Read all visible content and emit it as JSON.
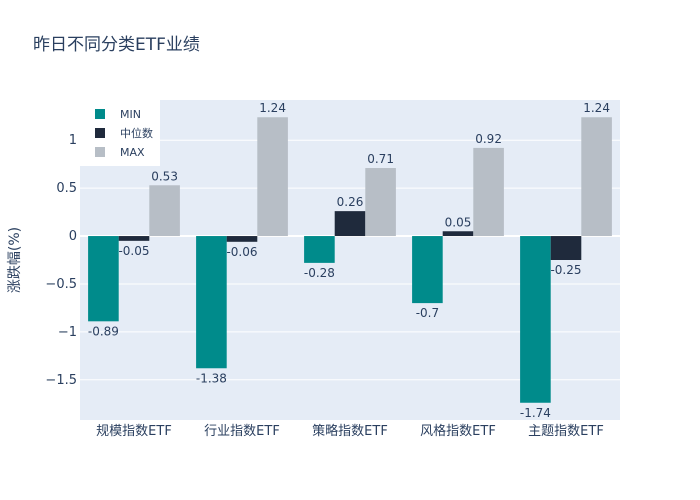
{
  "chart_data": {
    "type": "bar",
    "title": "昨日不同分类ETF业绩",
    "xlabel": "",
    "ylabel": "涨跌幅(%)",
    "categories": [
      "规模指数ETF",
      "行业指数ETF",
      "策略指数ETF",
      "风格指数ETF",
      "主题指数ETF"
    ],
    "series": [
      {
        "name": "MIN",
        "color": "#008b8b",
        "values": [
          -0.89,
          -1.38,
          -0.28,
          -0.7,
          -1.74
        ]
      },
      {
        "name": "中位数",
        "color": "#1f2a3c",
        "values": [
          -0.05,
          -0.06,
          0.26,
          0.05,
          -0.25
        ]
      },
      {
        "name": "MAX",
        "color": "#b7bec6",
        "values": [
          0.53,
          1.24,
          0.71,
          0.92,
          1.24
        ]
      }
    ],
    "ylim": [
      -1.92,
      1.42
    ],
    "yticks": [
      -1.5,
      -1,
      -0.5,
      0,
      0.5,
      1
    ],
    "yticklabels": [
      "−1.5",
      "−1",
      "−0.5",
      "0",
      "0.5",
      "1"
    ],
    "legend_position": "top-left",
    "grid": true
  }
}
